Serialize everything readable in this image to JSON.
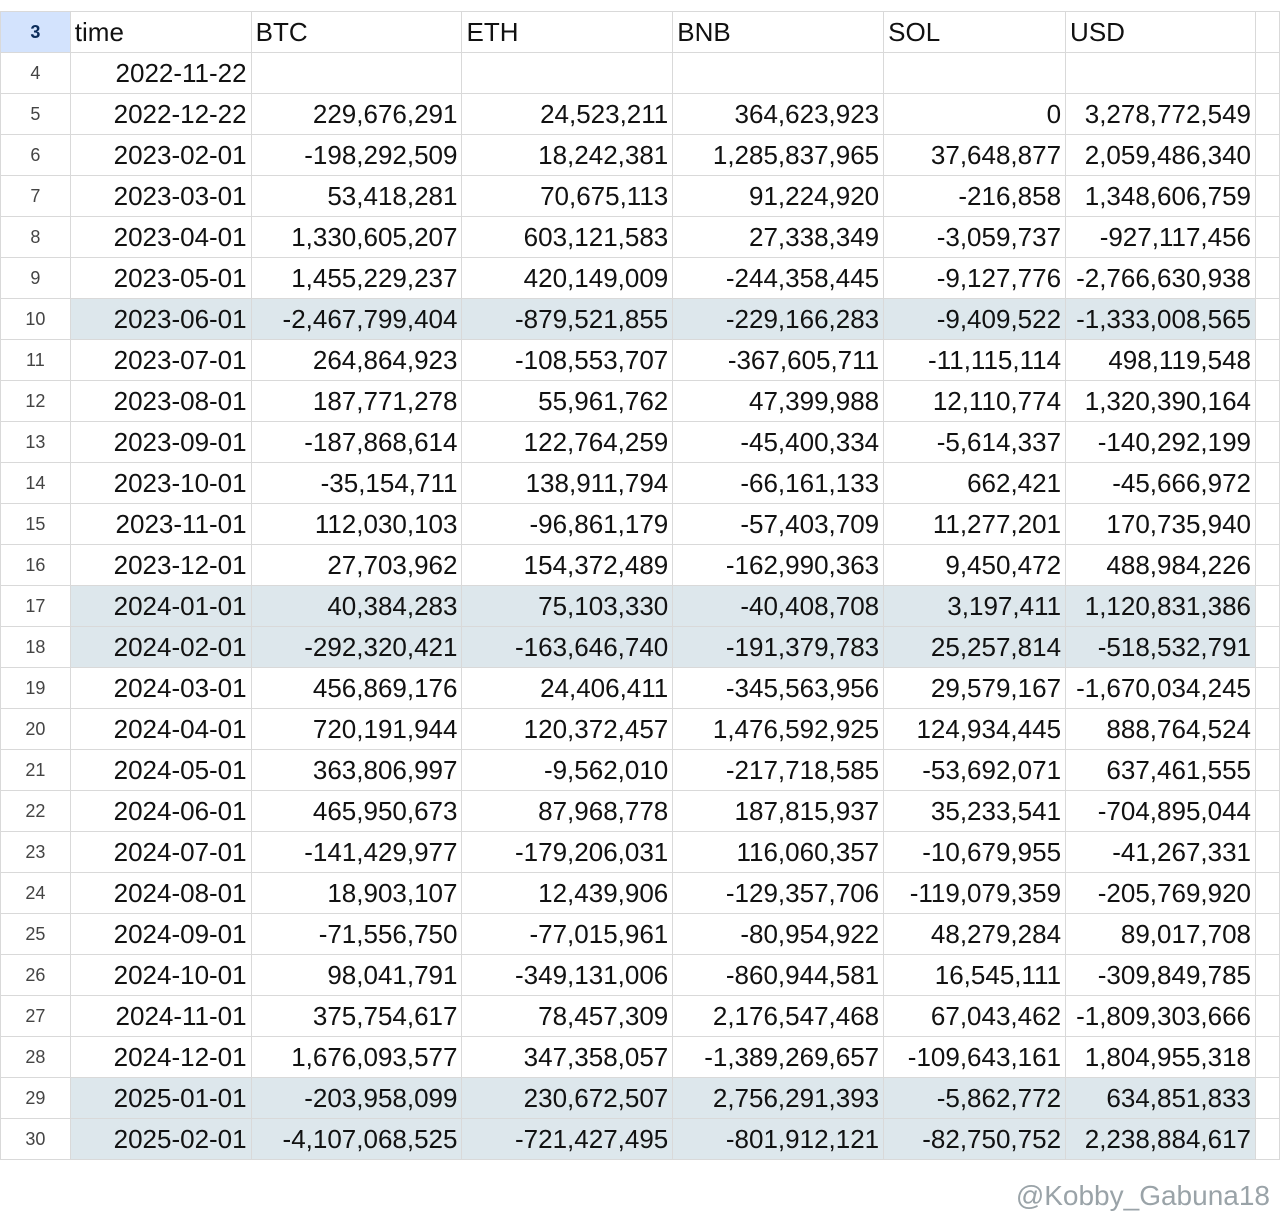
{
  "header_row_number": "3",
  "columns": [
    "time",
    "BTC",
    "ETH",
    "BNB",
    "SOL",
    "USD"
  ],
  "highlight_color": "#dde7ec",
  "rows": [
    {
      "n": "4",
      "highlight": false,
      "cells": [
        "2022-11-22",
        "",
        "",
        "",
        "",
        ""
      ]
    },
    {
      "n": "5",
      "highlight": false,
      "cells": [
        "2022-12-22",
        "229,676,291",
        "24,523,211",
        "364,623,923",
        "0",
        "3,278,772,549"
      ]
    },
    {
      "n": "6",
      "highlight": false,
      "cells": [
        "2023-02-01",
        "-198,292,509",
        "18,242,381",
        "1,285,837,965",
        "37,648,877",
        "2,059,486,340"
      ]
    },
    {
      "n": "7",
      "highlight": false,
      "cells": [
        "2023-03-01",
        "53,418,281",
        "70,675,113",
        "91,224,920",
        "-216,858",
        "1,348,606,759"
      ]
    },
    {
      "n": "8",
      "highlight": false,
      "cells": [
        "2023-04-01",
        "1,330,605,207",
        "603,121,583",
        "27,338,349",
        "-3,059,737",
        "-927,117,456"
      ]
    },
    {
      "n": "9",
      "highlight": false,
      "cells": [
        "2023-05-01",
        "1,455,229,237",
        "420,149,009",
        "-244,358,445",
        "-9,127,776",
        "-2,766,630,938"
      ]
    },
    {
      "n": "10",
      "highlight": true,
      "cells": [
        "2023-06-01",
        "-2,467,799,404",
        "-879,521,855",
        "-229,166,283",
        "-9,409,522",
        "-1,333,008,565"
      ]
    },
    {
      "n": "11",
      "highlight": false,
      "cells": [
        "2023-07-01",
        "264,864,923",
        "-108,553,707",
        "-367,605,711",
        "-11,115,114",
        "498,119,548"
      ]
    },
    {
      "n": "12",
      "highlight": false,
      "cells": [
        "2023-08-01",
        "187,771,278",
        "55,961,762",
        "47,399,988",
        "12,110,774",
        "1,320,390,164"
      ]
    },
    {
      "n": "13",
      "highlight": false,
      "cells": [
        "2023-09-01",
        "-187,868,614",
        "122,764,259",
        "-45,400,334",
        "-5,614,337",
        "-140,292,199"
      ]
    },
    {
      "n": "14",
      "highlight": false,
      "cells": [
        "2023-10-01",
        "-35,154,711",
        "138,911,794",
        "-66,161,133",
        "662,421",
        "-45,666,972"
      ]
    },
    {
      "n": "15",
      "highlight": false,
      "cells": [
        "2023-11-01",
        "112,030,103",
        "-96,861,179",
        "-57,403,709",
        "11,277,201",
        "170,735,940"
      ]
    },
    {
      "n": "16",
      "highlight": false,
      "cells": [
        "2023-12-01",
        "27,703,962",
        "154,372,489",
        "-162,990,363",
        "9,450,472",
        "488,984,226"
      ]
    },
    {
      "n": "17",
      "highlight": true,
      "cells": [
        "2024-01-01",
        "40,384,283",
        "75,103,330",
        "-40,408,708",
        "3,197,411",
        "1,120,831,386"
      ]
    },
    {
      "n": "18",
      "highlight": true,
      "cells": [
        "2024-02-01",
        "-292,320,421",
        "-163,646,740",
        "-191,379,783",
        "25,257,814",
        "-518,532,791"
      ]
    },
    {
      "n": "19",
      "highlight": false,
      "cells": [
        "2024-03-01",
        "456,869,176",
        "24,406,411",
        "-345,563,956",
        "29,579,167",
        "-1,670,034,245"
      ]
    },
    {
      "n": "20",
      "highlight": false,
      "cells": [
        "2024-04-01",
        "720,191,944",
        "120,372,457",
        "1,476,592,925",
        "124,934,445",
        "888,764,524"
      ]
    },
    {
      "n": "21",
      "highlight": false,
      "cells": [
        "2024-05-01",
        "363,806,997",
        "-9,562,010",
        "-217,718,585",
        "-53,692,071",
        "637,461,555"
      ]
    },
    {
      "n": "22",
      "highlight": false,
      "cells": [
        "2024-06-01",
        "465,950,673",
        "87,968,778",
        "187,815,937",
        "35,233,541",
        "-704,895,044"
      ]
    },
    {
      "n": "23",
      "highlight": false,
      "cells": [
        "2024-07-01",
        "-141,429,977",
        "-179,206,031",
        "116,060,357",
        "-10,679,955",
        "-41,267,331"
      ]
    },
    {
      "n": "24",
      "highlight": false,
      "cells": [
        "2024-08-01",
        "18,903,107",
        "12,439,906",
        "-129,357,706",
        "-119,079,359",
        "-205,769,920"
      ]
    },
    {
      "n": "25",
      "highlight": false,
      "cells": [
        "2024-09-01",
        "-71,556,750",
        "-77,015,961",
        "-80,954,922",
        "48,279,284",
        "89,017,708"
      ]
    },
    {
      "n": "26",
      "highlight": false,
      "cells": [
        "2024-10-01",
        "98,041,791",
        "-349,131,006",
        "-860,944,581",
        "16,545,111",
        "-309,849,785"
      ]
    },
    {
      "n": "27",
      "highlight": false,
      "cells": [
        "2024-11-01",
        "375,754,617",
        "78,457,309",
        "2,176,547,468",
        "67,043,462",
        "-1,809,303,666"
      ]
    },
    {
      "n": "28",
      "highlight": false,
      "cells": [
        "2024-12-01",
        "1,676,093,577",
        "347,358,057",
        "-1,389,269,657",
        "-109,643,161",
        "1,804,955,318"
      ]
    },
    {
      "n": "29",
      "highlight": true,
      "cells": [
        "2025-01-01",
        "-203,958,099",
        "230,672,507",
        "2,756,291,393",
        "-5,862,772",
        "634,851,833"
      ]
    },
    {
      "n": "30",
      "highlight": true,
      "cells": [
        "2025-02-01",
        "-4,107,068,525",
        "-721,427,495",
        "-801,912,121",
        "-82,750,752",
        "2,238,884,617"
      ]
    }
  ],
  "watermark": "@Kobby_Gabuna18"
}
